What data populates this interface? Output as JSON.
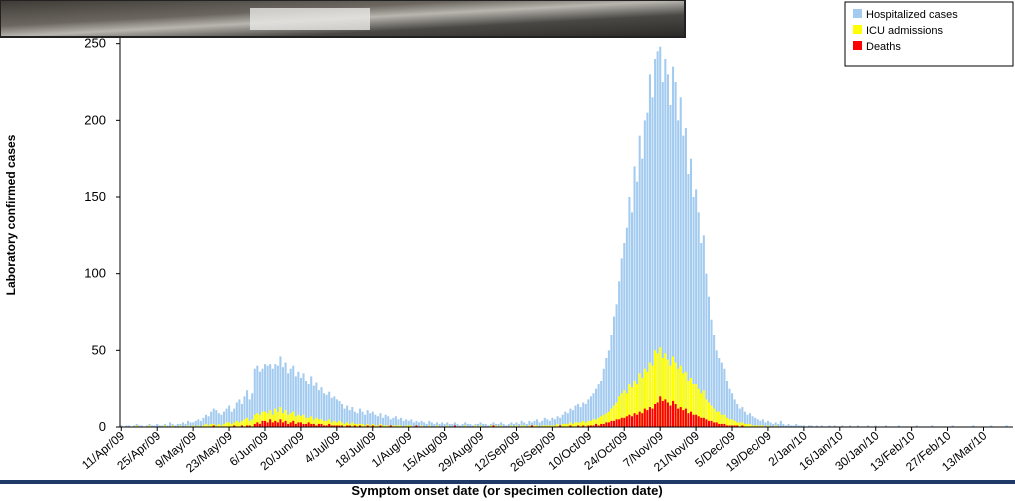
{
  "chart_data": {
    "type": "bar",
    "x_label": "Symptom onset date (or specimen collection date)",
    "y_label": "Laboratory confirmed cases",
    "ylim": [
      0,
      255
    ],
    "yticks": [
      0,
      50,
      100,
      150,
      200,
      250
    ],
    "legend": "top-right",
    "categories": [
      "11/Apr/09",
      null,
      null,
      null,
      null,
      null,
      null,
      null,
      null,
      null,
      null,
      null,
      null,
      null,
      "25/Apr/09",
      null,
      null,
      null,
      null,
      null,
      null,
      null,
      null,
      null,
      null,
      null,
      null,
      null,
      "9/May/09",
      null,
      null,
      null,
      null,
      null,
      null,
      null,
      null,
      null,
      null,
      null,
      null,
      null,
      "23/May/09",
      null,
      null,
      null,
      null,
      null,
      null,
      null,
      null,
      null,
      null,
      null,
      null,
      null,
      "6/Jun/09",
      null,
      null,
      null,
      null,
      null,
      null,
      null,
      null,
      null,
      null,
      null,
      null,
      null,
      "20/Jun/09",
      null,
      null,
      null,
      null,
      null,
      null,
      null,
      null,
      null,
      null,
      null,
      null,
      null,
      "4/Jul/09",
      null,
      null,
      null,
      null,
      null,
      null,
      null,
      null,
      null,
      null,
      null,
      null,
      null,
      "18/Jul/09",
      null,
      null,
      null,
      null,
      null,
      null,
      null,
      null,
      null,
      null,
      null,
      null,
      null,
      "1/Aug/09",
      null,
      null,
      null,
      null,
      null,
      null,
      null,
      null,
      null,
      null,
      null,
      null,
      null,
      "15/Aug/09",
      null,
      null,
      null,
      null,
      null,
      null,
      null,
      null,
      null,
      null,
      null,
      null,
      null,
      "29/Aug/09",
      null,
      null,
      null,
      null,
      null,
      null,
      null,
      null,
      null,
      null,
      null,
      null,
      null,
      "12/Sep/09",
      null,
      null,
      null,
      null,
      null,
      null,
      null,
      null,
      null,
      null,
      null,
      null,
      null,
      "26/Sep/09",
      null,
      null,
      null,
      null,
      null,
      null,
      null,
      null,
      null,
      null,
      null,
      null,
      null,
      "10/Oct/09",
      null,
      null,
      null,
      null,
      null,
      null,
      null,
      null,
      null,
      null,
      null,
      null,
      null,
      "24/Oct/09",
      null,
      null,
      null,
      null,
      null,
      null,
      null,
      null,
      null,
      null,
      null,
      null,
      null,
      "7/Nov/09",
      null,
      null,
      null,
      null,
      null,
      null,
      null,
      null,
      null,
      null,
      null,
      null,
      null,
      "21/Nov/09",
      null,
      null,
      null,
      null,
      null,
      null,
      null,
      null,
      null,
      null,
      null,
      null,
      null,
      "5/Dec/09",
      null,
      null,
      null,
      null,
      null,
      null,
      null,
      null,
      null,
      null,
      null,
      null,
      null,
      "19/Dec/09",
      null,
      null,
      null,
      null,
      null,
      null,
      null,
      null,
      null,
      null,
      null,
      null,
      null,
      "2/Jan/10",
      null,
      null,
      null,
      null,
      null,
      null,
      null,
      null,
      null,
      null,
      null,
      null,
      null,
      "16/Jan/10",
      null,
      null,
      null,
      null,
      null,
      null,
      null,
      null,
      null,
      null,
      null,
      null,
      null,
      "30/Jan/10",
      null,
      null,
      null,
      null,
      null,
      null,
      null,
      null,
      null,
      null,
      null,
      null,
      null,
      "13/Feb/10",
      null,
      null,
      null,
      null,
      null,
      null,
      null,
      null,
      null,
      null,
      null,
      null,
      null,
      "27/Feb/10",
      null,
      null,
      null,
      null,
      null,
      null,
      null,
      null,
      null,
      null,
      null,
      null,
      null,
      "13/Mar/10",
      null,
      null,
      null,
      null,
      null,
      null,
      null,
      null,
      null,
      null,
      null
    ],
    "series": [
      {
        "name": "Hospitalized cases",
        "color": "#a3cbf0",
        "values": [
          1,
          0,
          1,
          1,
          0,
          1,
          2,
          1,
          1,
          0,
          1,
          2,
          1,
          1,
          2,
          1,
          1,
          2,
          1,
          3,
          2,
          1,
          2,
          2,
          3,
          2,
          4,
          3,
          3,
          4,
          5,
          4,
          6,
          8,
          7,
          10,
          12,
          11,
          9,
          8,
          10,
          12,
          14,
          10,
          12,
          16,
          18,
          15,
          20,
          24,
          18,
          22,
          38,
          40,
          36,
          38,
          41,
          40,
          41,
          38,
          41,
          40,
          46,
          39,
          42,
          35,
          38,
          40,
          33,
          36,
          32,
          35,
          30,
          28,
          33,
          27,
          29,
          24,
          26,
          22,
          21,
          23,
          19,
          20,
          18,
          17,
          15,
          12,
          14,
          11,
          13,
          10,
          9,
          12,
          10,
          8,
          11,
          9,
          10,
          8,
          7,
          9,
          6,
          8,
          7,
          5,
          6,
          7,
          5,
          6,
          4,
          5,
          4,
          5,
          3,
          4,
          3,
          4,
          3,
          2,
          4,
          3,
          2,
          3,
          2,
          3,
          2,
          3,
          2,
          2,
          3,
          2,
          1,
          2,
          3,
          2,
          2,
          1,
          2,
          2,
          3,
          2,
          2,
          1,
          2,
          3,
          2,
          2,
          3,
          2,
          1,
          2,
          3,
          2,
          3,
          2,
          4,
          3,
          2,
          4,
          3,
          4,
          5,
          3,
          4,
          6,
          5,
          4,
          6,
          5,
          7,
          6,
          8,
          10,
          9,
          12,
          11,
          14,
          15,
          13,
          16,
          15,
          18,
          20,
          22,
          25,
          28,
          30,
          38,
          45,
          50,
          60,
          72,
          80,
          95,
          110,
          120,
          130,
          150,
          140,
          170,
          160,
          190,
          175,
          200,
          205,
          230,
          215,
          240,
          245,
          248,
          225,
          240,
          230,
          210,
          235,
          225,
          200,
          215,
          190,
          195,
          165,
          175,
          150,
          155,
          140,
          120,
          125,
          100,
          85,
          70,
          60,
          50,
          45,
          42,
          38,
          30,
          25,
          22,
          18,
          15,
          12,
          13,
          10,
          8,
          9,
          7,
          6,
          5,
          4,
          5,
          3,
          4,
          3,
          2,
          3,
          2,
          4,
          2,
          1,
          2,
          1,
          1,
          2,
          1,
          1,
          1,
          0,
          1,
          1,
          0,
          1,
          0,
          1,
          0,
          0,
          1,
          0,
          1,
          0,
          0,
          1,
          0,
          0,
          1,
          0,
          0,
          1,
          0,
          0,
          0,
          1,
          0,
          0,
          1,
          0,
          0,
          0,
          1,
          0,
          0,
          0,
          0,
          1,
          0,
          0,
          0,
          0,
          0,
          0,
          1,
          0,
          0,
          0,
          0,
          0,
          1,
          0,
          0,
          0,
          0,
          0,
          0,
          0,
          1,
          0,
          0,
          0,
          0,
          0,
          0,
          0,
          1,
          0,
          0,
          0,
          0,
          0,
          0,
          1,
          0,
          0,
          0,
          0,
          0,
          1,
          0,
          0
        ]
      },
      {
        "name": "ICU admissions",
        "color": "#ffff00",
        "values": [
          0,
          0,
          0,
          0,
          0,
          0,
          1,
          0,
          0,
          0,
          0,
          1,
          0,
          0,
          0,
          0,
          0,
          1,
          0,
          0,
          1,
          0,
          0,
          1,
          0,
          0,
          1,
          0,
          1,
          0,
          1,
          0,
          1,
          2,
          1,
          2,
          2,
          1,
          2,
          1,
          2,
          3,
          3,
          2,
          3,
          4,
          3,
          4,
          5,
          6,
          4,
          5,
          8,
          9,
          8,
          10,
          10,
          9,
          11,
          8,
          12,
          10,
          13,
          9,
          11,
          8,
          9,
          10,
          7,
          8,
          7,
          8,
          6,
          6,
          7,
          5,
          6,
          5,
          5,
          4,
          4,
          5,
          3,
          4,
          3,
          4,
          3,
          2,
          3,
          2,
          3,
          2,
          2,
          2,
          2,
          1,
          2,
          1,
          2,
          1,
          1,
          2,
          1,
          1,
          1,
          1,
          1,
          1,
          1,
          1,
          0,
          1,
          1,
          1,
          0,
          1,
          0,
          1,
          0,
          0,
          1,
          0,
          0,
          1,
          0,
          0,
          0,
          1,
          0,
          0,
          1,
          0,
          0,
          0,
          1,
          0,
          0,
          0,
          1,
          0,
          1,
          0,
          0,
          0,
          1,
          0,
          1,
          0,
          1,
          0,
          0,
          0,
          1,
          0,
          1,
          0,
          1,
          1,
          0,
          1,
          1,
          1,
          1,
          0,
          1,
          1,
          1,
          1,
          1,
          1,
          2,
          1,
          2,
          2,
          2,
          3,
          2,
          3,
          3,
          3,
          4,
          3,
          4,
          4,
          5,
          5,
          6,
          7,
          8,
          9,
          10,
          12,
          14,
          16,
          20,
          22,
          24,
          22,
          28,
          26,
          30,
          28,
          35,
          32,
          38,
          36,
          42,
          40,
          50,
          48,
          52,
          45,
          48,
          44,
          40,
          46,
          42,
          38,
          40,
          35,
          36,
          30,
          32,
          28,
          28,
          25,
          22,
          24,
          18,
          16,
          14,
          12,
          10,
          10,
          8,
          8,
          6,
          5,
          5,
          4,
          3,
          3,
          3,
          2,
          2,
          2,
          1,
          1,
          1,
          1,
          1,
          0,
          1,
          0,
          0,
          1,
          0,
          0,
          0,
          0,
          0,
          0,
          0,
          0,
          0,
          0,
          0,
          0,
          0,
          0,
          0,
          0,
          0,
          0,
          0,
          0,
          0,
          0,
          0,
          0,
          0,
          0,
          0,
          0,
          0,
          0,
          0,
          0,
          0,
          0,
          0,
          0,
          0,
          0,
          0,
          0,
          0,
          0,
          0,
          0,
          0,
          0,
          0,
          0,
          0,
          0,
          0,
          0,
          0,
          0,
          0,
          0,
          0,
          0,
          0,
          0,
          0,
          0,
          0,
          0,
          0,
          0,
          0,
          0,
          0,
          0,
          0,
          0,
          0,
          0,
          0,
          0,
          0,
          0,
          0,
          0,
          0,
          0,
          0,
          0,
          0,
          0,
          0,
          0,
          0,
          0,
          0,
          0
        ]
      },
      {
        "name": "Deaths",
        "color": "#ff0000",
        "values": [
          0,
          0,
          0,
          0,
          0,
          0,
          0,
          0,
          0,
          0,
          0,
          0,
          0,
          0,
          0,
          0,
          0,
          0,
          0,
          0,
          0,
          0,
          0,
          0,
          0,
          0,
          0,
          0,
          0,
          0,
          0,
          0,
          0,
          0,
          0,
          0,
          1,
          0,
          0,
          0,
          0,
          0,
          0,
          0,
          1,
          0,
          0,
          1,
          0,
          1,
          1,
          0,
          2,
          3,
          2,
          4,
          4,
          3,
          5,
          3,
          4,
          3,
          5,
          3,
          4,
          2,
          3,
          4,
          2,
          3,
          3,
          2,
          2,
          3,
          2,
          2,
          1,
          2,
          2,
          1,
          1,
          2,
          1,
          1,
          1,
          1,
          1,
          0,
          1,
          1,
          0,
          1,
          0,
          1,
          0,
          0,
          1,
          0,
          1,
          0,
          0,
          1,
          0,
          0,
          0,
          1,
          0,
          0,
          0,
          0,
          0,
          0,
          0,
          0,
          0,
          1,
          0,
          0,
          0,
          0,
          0,
          0,
          0,
          0,
          0,
          0,
          0,
          0,
          0,
          0,
          1,
          0,
          0,
          0,
          0,
          0,
          0,
          0,
          0,
          0,
          0,
          0,
          0,
          0,
          0,
          1,
          0,
          0,
          0,
          0,
          0,
          0,
          0,
          0,
          0,
          0,
          0,
          0,
          0,
          0,
          1,
          0,
          0,
          0,
          0,
          0,
          0,
          0,
          0,
          0,
          0,
          1,
          0,
          0,
          0,
          1,
          0,
          0,
          1,
          0,
          1,
          0,
          1,
          1,
          1,
          2,
          1,
          2,
          2,
          3,
          3,
          4,
          4,
          5,
          5,
          6,
          6,
          7,
          8,
          7,
          9,
          8,
          10,
          9,
          12,
          11,
          13,
          12,
          15,
          16,
          20,
          17,
          18,
          16,
          14,
          17,
          15,
          12,
          13,
          11,
          12,
          9,
          10,
          8,
          8,
          7,
          6,
          6,
          5,
          4,
          4,
          3,
          3,
          2,
          2,
          2,
          1,
          1,
          1,
          1,
          1,
          0,
          1,
          0,
          0,
          0,
          0,
          0,
          0,
          0,
          0,
          0,
          0,
          0,
          0,
          0,
          0,
          0,
          0,
          0,
          0,
          0,
          0,
          0,
          0,
          0,
          0,
          0,
          0,
          0,
          0,
          0,
          0,
          0,
          0,
          0,
          0,
          0,
          0,
          0,
          0,
          0,
          0,
          0,
          0,
          0,
          0,
          0,
          0,
          0,
          0,
          0,
          0,
          0,
          0,
          0,
          0,
          0,
          0,
          0,
          0,
          0,
          0,
          0,
          0,
          0,
          0,
          0,
          0,
          0,
          0,
          0,
          0,
          0,
          0,
          0,
          0,
          0,
          0,
          0,
          0,
          0,
          0,
          0,
          0,
          0,
          0,
          0,
          0,
          0,
          0,
          0,
          0,
          0,
          0,
          0,
          0,
          0,
          0,
          0,
          0,
          0,
          0,
          0,
          0,
          0,
          0,
          0
        ]
      }
    ]
  }
}
